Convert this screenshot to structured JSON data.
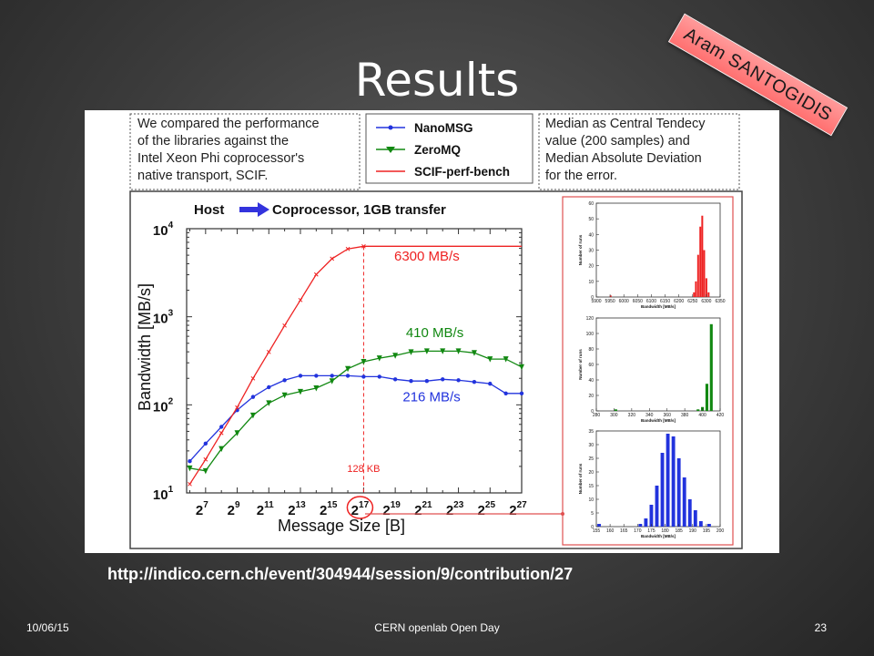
{
  "slide": {
    "title": "Results",
    "author": "Aram SANTOGIDIS",
    "reference_url": "http://indico.cern.ch/event/304944/session/9/contribution/27",
    "footer_date": "10/06/15",
    "footer_event": "CERN openlab Open Day",
    "page_number": "23"
  },
  "notes": {
    "left": [
      "We compared the performance",
      "of the libraries against the",
      "Intel Xeon Phi coprocessor's",
      "native transport, SCIF."
    ],
    "right": [
      "Median as Central Tendecy",
      "value (200 samples) and",
      "Median Absolute Deviation",
      "for the error."
    ]
  },
  "colors": {
    "nanomsg": "#2233dd",
    "zeromq": "#118811",
    "scif": "#ee2222"
  },
  "chart_data": [
    {
      "type": "line",
      "title_left": "Host",
      "title_right": "Coprocessor, 1GB transfer",
      "xlabel": "Message Size [B]",
      "ylabel": "Bandwidth [MB/s]",
      "xscale": "log2",
      "yscale": "log10",
      "xlim": [
        5.8,
        27
      ],
      "ylim": [
        1,
        4
      ],
      "xticks": [
        7,
        9,
        11,
        13,
        15,
        17,
        19,
        21,
        23,
        25,
        27
      ],
      "xtick_base": "2",
      "yticks": [
        1,
        2,
        3,
        4
      ],
      "ytick_base": "10",
      "x": [
        6,
        7,
        8,
        9,
        10,
        11,
        12,
        13,
        14,
        15,
        16,
        17,
        18,
        19,
        20,
        21,
        22,
        23,
        24,
        25,
        26,
        27
      ],
      "series": [
        {
          "name": "NanoMSG",
          "marker": "dot",
          "color_key": "nanomsg",
          "values_log10": [
            1.36,
            1.56,
            1.75,
            1.94,
            2.09,
            2.2,
            2.28,
            2.33,
            2.33,
            2.33,
            2.33,
            2.32,
            2.32,
            2.29,
            2.27,
            2.27,
            2.29,
            2.28,
            2.26,
            2.24,
            2.13,
            2.13
          ]
        },
        {
          "name": "ZeroMQ",
          "marker": "triangle",
          "color_key": "zeromq",
          "values_log10": [
            1.28,
            1.25,
            1.5,
            1.68,
            1.88,
            2.02,
            2.11,
            2.15,
            2.19,
            2.27,
            2.41,
            2.49,
            2.53,
            2.56,
            2.6,
            2.61,
            2.61,
            2.61,
            2.59,
            2.52,
            2.52,
            2.43
          ]
        },
        {
          "name": "SCIF-perf-bench",
          "marker": "x",
          "color_key": "scif",
          "values_log10": [
            1.1,
            1.38,
            1.68,
            1.97,
            2.3,
            2.6,
            2.9,
            3.19,
            3.48,
            3.66,
            3.77,
            3.8,
            3.8,
            3.8,
            3.8,
            3.8,
            3.8,
            3.8,
            3.8,
            3.8,
            3.8,
            3.8
          ]
        }
      ],
      "annotations": [
        {
          "text": "6300 MB/s",
          "x": 21,
          "y_log10": 3.64,
          "color_key": "scif"
        },
        {
          "text": "410 MB/s",
          "x": 21.5,
          "y_log10": 2.77,
          "color_key": "zeromq"
        },
        {
          "text": "216 MB/s",
          "x": 21.3,
          "y_log10": 2.04,
          "color_key": "nanomsg"
        },
        {
          "text": "128 KB",
          "x": 17,
          "y_log10": 1.24,
          "color_key": "scif"
        }
      ],
      "vline_x": 17,
      "legend": "top"
    },
    {
      "type": "bar",
      "xlabel": "Bandwidth [MB/s]",
      "ylabel": "Number of runs",
      "xticks": [
        5900,
        5950,
        6000,
        6050,
        6100,
        6150,
        6200,
        6250,
        6300,
        6350
      ],
      "yticks": [
        0,
        10,
        20,
        30,
        40,
        50,
        60
      ],
      "xlim": [
        5900,
        6350
      ],
      "ylim": [
        0,
        60
      ],
      "color_key": "scif",
      "x": [
        5952,
        6255,
        6262,
        6270,
        6278,
        6285,
        6292,
        6300,
        6308
      ],
      "values": [
        1,
        3,
        10,
        27,
        45,
        52,
        30,
        12,
        3
      ]
    },
    {
      "type": "bar",
      "xlabel": "Bandwidth [MB/s]",
      "ylabel": "Number of runs",
      "xticks": [
        280,
        300,
        320,
        340,
        360,
        380,
        400,
        420
      ],
      "yticks": [
        0,
        20,
        40,
        60,
        80,
        100,
        120
      ],
      "xlim": [
        280,
        420
      ],
      "ylim": [
        0,
        120
      ],
      "color_key": "zeromq",
      "x": [
        302,
        395,
        400,
        405,
        410
      ],
      "values": [
        2,
        2,
        5,
        35,
        112
      ]
    },
    {
      "type": "bar",
      "xlabel": "Bandwidth [MB/s]",
      "ylabel": "Number of runs",
      "xticks": [
        155,
        160,
        165,
        170,
        175,
        180,
        185,
        190,
        195,
        200
      ],
      "yticks": [
        0,
        5,
        10,
        15,
        20,
        25,
        30,
        35
      ],
      "xlim": [
        155,
        200
      ],
      "ylim": [
        0,
        35
      ],
      "color_key": "nanomsg",
      "x": [
        156,
        171,
        173,
        175,
        177,
        179,
        181,
        183,
        185,
        187,
        189,
        191,
        193,
        196
      ],
      "values": [
        1,
        1,
        3,
        8,
        15,
        27,
        34,
        33,
        25,
        18,
        10,
        6,
        2,
        1
      ]
    }
  ]
}
